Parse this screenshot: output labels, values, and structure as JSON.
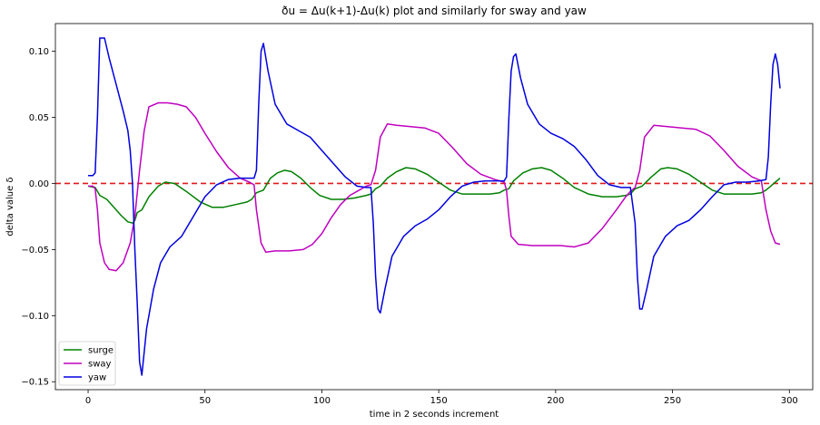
{
  "chart_data": {
    "type": "line",
    "title": "ðu = Δu(k+1)-Δu(k)  plot and similarly for sway and yaw",
    "xlabel": "time in 2 seconds increment",
    "ylabel": "delta value δ",
    "xlim": [
      -14,
      310
    ],
    "ylim": [
      -0.156,
      0.121
    ],
    "xticks": [
      0,
      50,
      100,
      150,
      200,
      250,
      300
    ],
    "yticks": [
      -0.15,
      -0.1,
      -0.05,
      0.0,
      0.05,
      0.1
    ],
    "ytick_labels": [
      "−0.15",
      "−0.10",
      "−0.05",
      "0.00",
      "0.05",
      "0.10"
    ],
    "grid": false,
    "legend_position": "lower-left",
    "reference_line": {
      "y": 0,
      "color": "#e41a1c",
      "style": "dashed"
    },
    "series": [
      {
        "name": "surge",
        "color": "#008000",
        "x": [
          0,
          3,
          5,
          8,
          11,
          14,
          17,
          19,
          20,
          21,
          23,
          26,
          30,
          33,
          37,
          42,
          48,
          53,
          58,
          63,
          68,
          70,
          72,
          75,
          78,
          81,
          84,
          87,
          91,
          95,
          99,
          104,
          109,
          114,
          119,
          121,
          123,
          125,
          128,
          132,
          136,
          140,
          145,
          150,
          155,
          160,
          166,
          172,
          176,
          178,
          180,
          182,
          186,
          190,
          194,
          198,
          203,
          208,
          214,
          220,
          226,
          230,
          232,
          234,
          237,
          241,
          245,
          248,
          252,
          257,
          262,
          267,
          272,
          278,
          284,
          288,
          290,
          292,
          294,
          296
        ],
        "y": [
          -0.002,
          -0.003,
          -0.009,
          -0.012,
          -0.018,
          -0.024,
          -0.029,
          -0.03,
          -0.028,
          -0.022,
          -0.02,
          -0.01,
          -0.002,
          0.001,
          0.0,
          -0.006,
          -0.014,
          -0.018,
          -0.018,
          -0.016,
          -0.014,
          -0.012,
          -0.007,
          -0.005,
          0.004,
          0.008,
          0.01,
          0.009,
          0.004,
          -0.003,
          -0.009,
          -0.012,
          -0.012,
          -0.011,
          -0.009,
          -0.008,
          -0.004,
          -0.002,
          0.004,
          0.009,
          0.012,
          0.011,
          0.007,
          0.001,
          -0.005,
          -0.008,
          -0.008,
          -0.008,
          -0.007,
          -0.005,
          -0.004,
          0.002,
          0.008,
          0.011,
          0.012,
          0.01,
          0.004,
          -0.003,
          -0.008,
          -0.01,
          -0.01,
          -0.009,
          -0.008,
          -0.004,
          -0.002,
          0.005,
          0.011,
          0.012,
          0.011,
          0.007,
          0.001,
          -0.005,
          -0.008,
          -0.008,
          -0.008,
          -0.007,
          -0.005,
          -0.002,
          0.001,
          0.004
        ]
      },
      {
        "name": "sway",
        "color": "#c000c0",
        "x": [
          0,
          2,
          3,
          4,
          5,
          7,
          9,
          12,
          15,
          18,
          20,
          22,
          24,
          26,
          30,
          34,
          38,
          42,
          46,
          50,
          55,
          60,
          65,
          69,
          71,
          72,
          74,
          76,
          80,
          86,
          92,
          96,
          100,
          104,
          108,
          112,
          116,
          119,
          121,
          123,
          125,
          128,
          132,
          138,
          144,
          150,
          156,
          162,
          168,
          174,
          178,
          179,
          180,
          181,
          184,
          190,
          196,
          202,
          208,
          214,
          220,
          226,
          230,
          232,
          234,
          236,
          238,
          242,
          248,
          254,
          260,
          266,
          272,
          278,
          284,
          288,
          290,
          292,
          294,
          296
        ],
        "y": [
          -0.002,
          -0.002,
          -0.004,
          -0.02,
          -0.045,
          -0.06,
          -0.065,
          -0.066,
          -0.06,
          -0.045,
          -0.025,
          0.01,
          0.04,
          0.058,
          0.061,
          0.061,
          0.06,
          0.058,
          0.05,
          0.038,
          0.024,
          0.012,
          0.004,
          0.001,
          -0.001,
          -0.02,
          -0.045,
          -0.052,
          -0.051,
          -0.051,
          -0.05,
          -0.046,
          -0.038,
          -0.026,
          -0.016,
          -0.009,
          -0.005,
          -0.002,
          -0.001,
          0.01,
          0.035,
          0.045,
          0.044,
          0.043,
          0.042,
          0.038,
          0.027,
          0.015,
          0.007,
          0.003,
          0.001,
          -0.005,
          -0.025,
          -0.04,
          -0.046,
          -0.047,
          -0.047,
          -0.047,
          -0.048,
          -0.045,
          -0.034,
          -0.02,
          -0.01,
          -0.006,
          -0.003,
          0.01,
          0.035,
          0.044,
          0.043,
          0.042,
          0.041,
          0.036,
          0.025,
          0.013,
          0.005,
          0.002,
          -0.02,
          -0.036,
          -0.045,
          -0.046
        ]
      },
      {
        "name": "yaw",
        "color": "#0000e0",
        "x": [
          0,
          2,
          3,
          4,
          5,
          6,
          7,
          9,
          12,
          15,
          17,
          18,
          19,
          20,
          21,
          22,
          23,
          25,
          28,
          31,
          35,
          40,
          45,
          50,
          55,
          60,
          65,
          70,
          71,
          72,
          73,
          74,
          75,
          77,
          80,
          85,
          90,
          95,
          100,
          105,
          110,
          115,
          119,
          121,
          122,
          123,
          124,
          125,
          127,
          130,
          135,
          140,
          145,
          150,
          155,
          160,
          165,
          170,
          175,
          178,
          179,
          180,
          181,
          182,
          183,
          185,
          188,
          193,
          198,
          203,
          208,
          213,
          218,
          223,
          228,
          232,
          234,
          235,
          236,
          237,
          239,
          242,
          247,
          252,
          257,
          262,
          267,
          272,
          277,
          282,
          287,
          290,
          291,
          292,
          293,
          294,
          295,
          296
        ],
        "y": [
          0.006,
          0.006,
          0.008,
          0.05,
          0.11,
          0.11,
          0.11,
          0.095,
          0.075,
          0.055,
          0.04,
          0.025,
          0.0,
          -0.05,
          -0.09,
          -0.135,
          -0.145,
          -0.11,
          -0.08,
          -0.06,
          -0.048,
          -0.04,
          -0.025,
          -0.01,
          -0.001,
          0.003,
          0.004,
          0.004,
          0.004,
          0.01,
          0.06,
          0.1,
          0.106,
          0.085,
          0.06,
          0.045,
          0.04,
          0.035,
          0.025,
          0.015,
          0.005,
          -0.002,
          -0.003,
          -0.003,
          -0.03,
          -0.07,
          -0.095,
          -0.098,
          -0.08,
          -0.055,
          -0.04,
          -0.032,
          -0.027,
          -0.02,
          -0.01,
          -0.002,
          0.001,
          0.002,
          0.002,
          0.002,
          0.005,
          0.05,
          0.085,
          0.096,
          0.098,
          0.08,
          0.06,
          0.045,
          0.038,
          0.034,
          0.028,
          0.018,
          0.006,
          -0.001,
          -0.003,
          -0.003,
          -0.03,
          -0.07,
          -0.095,
          -0.095,
          -0.08,
          -0.055,
          -0.04,
          -0.032,
          -0.028,
          -0.02,
          -0.01,
          -0.001,
          0.001,
          0.001,
          0.002,
          0.003,
          0.02,
          0.06,
          0.09,
          0.098,
          0.09,
          0.072
        ]
      }
    ]
  }
}
